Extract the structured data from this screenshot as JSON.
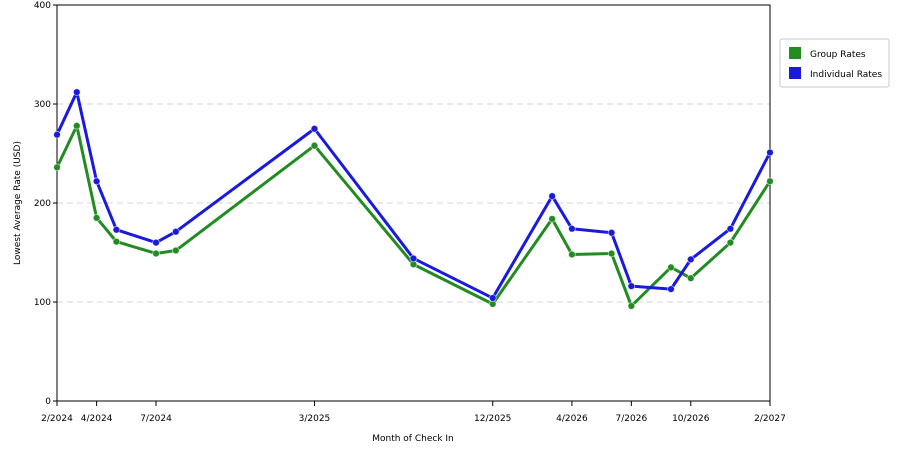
{
  "chart_data": {
    "type": "line",
    "xlabel": "Month of Check In",
    "ylabel": "Lowest Average Rate (USD)",
    "ylim": [
      0,
      400
    ],
    "yticks": [
      0,
      100,
      200,
      300,
      400
    ],
    "grid": "horizontal dashed",
    "legend_position": "right",
    "x_tick_labels": [
      "2/2024",
      "4/2024",
      "7/2024",
      "3/2025",
      "12/2025",
      "4/2026",
      "7/2026",
      "10/2026",
      "2/2027"
    ],
    "x": [
      "2/2024",
      "3/2024",
      "4/2024",
      "5/2024",
      "7/2024",
      "8/2024",
      "3/2025",
      "8/2025",
      "12/2025",
      "3/2026",
      "4/2026",
      "6/2026",
      "7/2026",
      "9/2026",
      "10/2026",
      "12/2026",
      "2/2027"
    ],
    "series": [
      {
        "name": "Group Rates",
        "color": "#228b22",
        "values": [
          236,
          278,
          185,
          161,
          149,
          152,
          258,
          138,
          98,
          184,
          148,
          149,
          96,
          135,
          124,
          160,
          222
        ]
      },
      {
        "name": "Individual Rates",
        "color": "#1a1adf",
        "values": [
          269,
          312,
          222,
          173,
          160,
          171,
          275,
          144,
          104,
          207,
          174,
          170,
          116,
          113,
          143,
          174,
          251
        ]
      }
    ]
  }
}
